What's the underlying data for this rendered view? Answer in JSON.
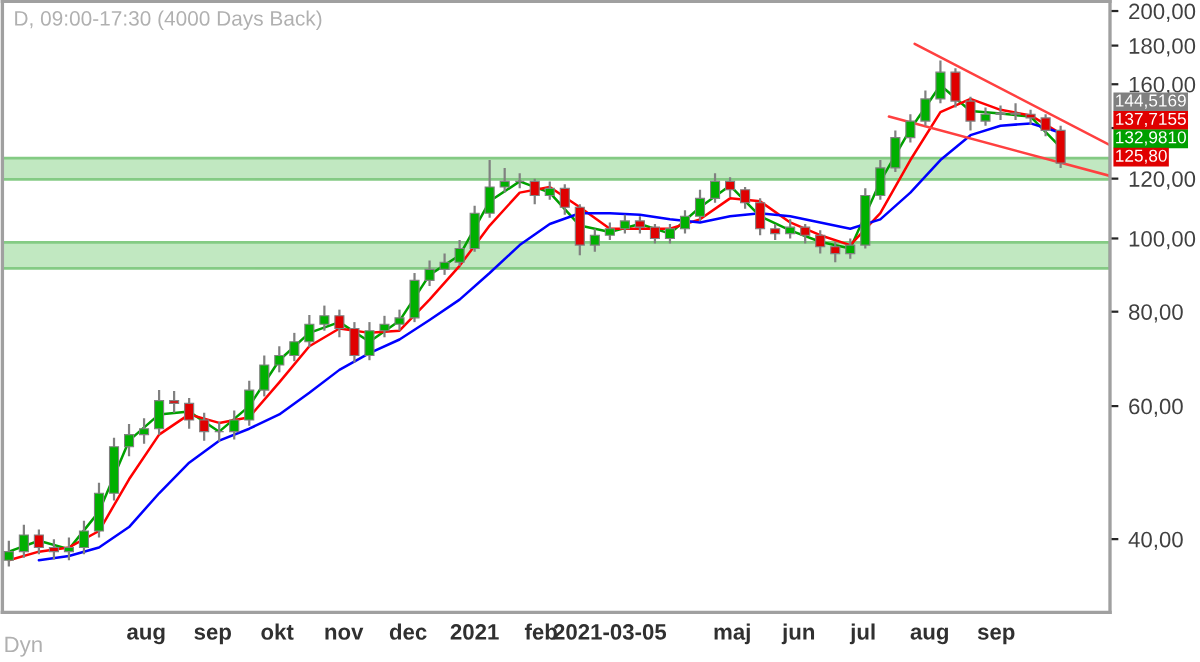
{
  "chart_data": {
    "type": "candlestick",
    "title": "D, 09:00-17:30 (4000 Days Back)",
    "x": [
      "2020-05-29",
      "2020-06-05",
      "2020-06-12",
      "2020-06-19",
      "2020-06-26",
      "2020-07-03",
      "2020-07-10",
      "2020-07-17",
      "2020-07-24",
      "2020-07-31",
      "2020-08-07",
      "2020-08-14",
      "2020-08-21",
      "2020-08-28",
      "2020-09-04",
      "2020-09-11",
      "2020-09-18",
      "2020-09-25",
      "2020-10-02",
      "2020-10-09",
      "2020-10-16",
      "2020-10-23",
      "2020-10-30",
      "2020-11-06",
      "2020-11-13",
      "2020-11-20",
      "2020-11-27",
      "2020-12-04",
      "2020-12-11",
      "2020-12-18",
      "2020-12-25",
      "2021-01-01",
      "2021-01-08",
      "2021-01-15",
      "2021-01-22",
      "2021-01-29",
      "2021-02-05",
      "2021-02-12",
      "2021-02-19",
      "2021-02-26",
      "2021-03-05",
      "2021-03-12",
      "2021-03-19",
      "2021-03-26",
      "2021-04-02",
      "2021-04-09",
      "2021-04-16",
      "2021-04-23",
      "2021-04-30",
      "2021-05-07",
      "2021-05-14",
      "2021-05-21",
      "2021-05-28",
      "2021-06-04",
      "2021-06-11",
      "2021-06-18",
      "2021-06-25",
      "2021-07-02",
      "2021-07-09",
      "2021-07-16",
      "2021-07-23",
      "2021-07-30",
      "2021-08-06",
      "2021-08-13",
      "2021-08-20",
      "2021-08-27",
      "2021-09-03",
      "2021-09-10",
      "2021-09-17",
      "2021-09-24",
      "2021-10-01"
    ],
    "ohlc": [
      [
        37.5,
        39.8,
        36.8,
        38.5
      ],
      [
        38.5,
        41.8,
        37.8,
        40.5
      ],
      [
        40.5,
        41.2,
        38.2,
        39
      ],
      [
        39,
        40,
        37.6,
        38.5
      ],
      [
        38.5,
        40.2,
        37.5,
        39
      ],
      [
        39,
        42.3,
        38.2,
        41
      ],
      [
        41,
        47.5,
        40.2,
        46
      ],
      [
        46,
        54.5,
        45,
        53
      ],
      [
        53,
        56.8,
        51.5,
        55
      ],
      [
        55,
        57.8,
        53.5,
        56
      ],
      [
        56,
        63,
        55,
        61
      ],
      [
        61,
        62.8,
        58.8,
        60.5
      ],
      [
        60.5,
        61.5,
        56,
        57.5
      ],
      [
        57.5,
        58.8,
        54,
        55.5
      ],
      [
        55.5,
        57.2,
        53.8,
        55.5
      ],
      [
        55.5,
        59.2,
        54.2,
        57.5
      ],
      [
        57.5,
        64.8,
        56.5,
        63
      ],
      [
        63,
        70,
        61.8,
        68
      ],
      [
        68,
        72,
        66.5,
        70
      ],
      [
        70,
        75,
        68.8,
        73
      ],
      [
        73,
        79.2,
        71.8,
        77
      ],
      [
        77,
        81.5,
        75.5,
        79
      ],
      [
        79,
        80.5,
        74,
        76
      ],
      [
        76,
        77.5,
        68.5,
        70
      ],
      [
        70,
        77.5,
        69,
        75.5
      ],
      [
        75.5,
        79,
        74,
        77
      ],
      [
        77,
        80.5,
        75.5,
        78.5
      ],
      [
        78.5,
        90,
        77.5,
        88
      ],
      [
        88,
        93.5,
        86.5,
        91
      ],
      [
        91,
        95.5,
        89.5,
        93
      ],
      [
        93,
        99.5,
        92,
        97
      ],
      [
        97,
        110.5,
        96,
        108
      ],
      [
        108,
        127,
        106.5,
        117
      ],
      [
        117,
        124,
        115,
        119
      ],
      [
        119,
        122,
        116.5,
        119
      ],
      [
        119,
        120,
        111,
        114
      ],
      [
        114,
        119,
        112.5,
        116.5
      ],
      [
        116.5,
        118,
        107.5,
        110
      ],
      [
        110,
        111,
        95,
        98
      ],
      [
        98,
        103,
        96,
        101
      ],
      [
        101,
        105,
        99.5,
        103
      ],
      [
        103,
        107.5,
        101.5,
        105.5
      ],
      [
        105.5,
        107,
        101.5,
        103.5
      ],
      [
        103.5,
        104.5,
        98.5,
        100
      ],
      [
        100,
        104.5,
        98.5,
        103
      ],
      [
        103,
        109,
        101.5,
        107
      ],
      [
        107,
        116,
        105.5,
        113
      ],
      [
        113,
        122,
        111.5,
        119
      ],
      [
        119,
        120.5,
        113.5,
        116
      ],
      [
        116,
        117,
        109.5,
        111.5
      ],
      [
        111.5,
        113,
        101,
        103
      ],
      [
        103,
        104.5,
        99.5,
        101.5
      ],
      [
        101.5,
        106,
        100,
        103.5
      ],
      [
        103.5,
        104.5,
        98.5,
        101
      ],
      [
        101,
        102.5,
        95.5,
        97.5
      ],
      [
        97.5,
        99,
        93,
        95.5
      ],
      [
        95.5,
        100,
        94,
        98
      ],
      [
        98,
        116.5,
        97,
        114
      ],
      [
        114,
        127,
        112.5,
        124
      ],
      [
        124,
        139,
        122.5,
        136
      ],
      [
        136,
        146,
        134,
        143
      ],
      [
        143,
        157,
        141,
        153
      ],
      [
        153,
        172,
        151,
        166
      ],
      [
        166,
        168,
        149,
        152
      ],
      [
        152,
        154,
        139,
        143
      ],
      [
        143,
        149,
        141,
        146
      ],
      [
        146,
        150,
        143.5,
        146.5
      ],
      [
        146.5,
        151,
        143.5,
        146
      ],
      [
        146,
        148,
        141.5,
        144.4
      ],
      [
        144.4,
        146,
        136.5,
        139
      ],
      [
        139,
        141,
        124,
        125.8
      ]
    ],
    "series": [
      {
        "type": "line",
        "color": "#00a000",
        "x": [
          "2020-05-29",
          "2020-06-12",
          "2020-06-26",
          "2020-07-10",
          "2020-07-24",
          "2020-08-07",
          "2020-08-21",
          "2020-09-04",
          "2020-09-18",
          "2020-10-02",
          "2020-10-16",
          "2020-10-30",
          "2020-11-13",
          "2020-11-27",
          "2020-12-11",
          "2020-12-25",
          "2021-01-08",
          "2021-01-22",
          "2021-02-05",
          "2021-02-19",
          "2021-03-05",
          "2021-03-19",
          "2021-04-02",
          "2021-04-16",
          "2021-04-30",
          "2021-05-14",
          "2021-05-28",
          "2021-06-11",
          "2021-06-25",
          "2021-07-09",
          "2021-07-23",
          "2021-08-06",
          "2021-08-20",
          "2021-09-03",
          "2021-09-17",
          "2021-10-01"
        ],
        "values": [
          38.5,
          39.8,
          38.8,
          43.5,
          54,
          58.5,
          59,
          55.5,
          60,
          69,
          75,
          77.5,
          73,
          77.8,
          89.5,
          95,
          112,
          119,
          115,
          104,
          102,
          104.5,
          101.5,
          110,
          117.5,
          107,
          102.5,
          99,
          97,
          119,
          139.5,
          159.5,
          147.5,
          146.3,
          145,
          132
        ]
      },
      {
        "type": "line",
        "color": "#ff0000",
        "x": [
          "2020-05-29",
          "2020-06-12",
          "2020-06-26",
          "2020-07-10",
          "2020-07-24",
          "2020-08-07",
          "2020-08-21",
          "2020-09-04",
          "2020-09-18",
          "2020-10-02",
          "2020-10-16",
          "2020-10-30",
          "2020-11-13",
          "2020-11-27",
          "2020-12-11",
          "2020-12-25",
          "2021-01-08",
          "2021-01-22",
          "2021-02-05",
          "2021-02-19",
          "2021-03-05",
          "2021-03-19",
          "2021-04-02",
          "2021-04-16",
          "2021-04-30",
          "2021-05-14",
          "2021-05-28",
          "2021-06-11",
          "2021-06-25",
          "2021-07-09",
          "2021-07-23",
          "2021-08-06",
          "2021-08-20",
          "2021-09-03",
          "2021-09-17",
          "2021-10-01"
        ],
        "values": [
          37.5,
          38.5,
          39,
          41,
          48,
          55,
          58.5,
          57,
          58,
          64.5,
          72,
          76,
          75,
          75.5,
          83,
          92,
          104,
          115,
          117,
          110,
          103,
          103,
          103,
          106,
          113,
          112,
          105,
          101,
          98,
          108,
          127,
          147,
          153,
          148,
          145.5,
          137.7
        ]
      },
      {
        "type": "line",
        "color": "#0000ff",
        "x": [
          "2020-06-12",
          "2020-06-26",
          "2020-07-10",
          "2020-07-24",
          "2020-08-07",
          "2020-08-21",
          "2020-09-04",
          "2020-09-18",
          "2020-10-02",
          "2020-10-16",
          "2020-10-30",
          "2020-11-13",
          "2020-11-27",
          "2020-12-11",
          "2020-12-25",
          "2021-01-08",
          "2021-01-22",
          "2021-02-05",
          "2021-02-19",
          "2021-03-05",
          "2021-03-19",
          "2021-04-02",
          "2021-04-16",
          "2021-04-30",
          "2021-05-14",
          "2021-05-28",
          "2021-06-11",
          "2021-06-25",
          "2021-07-09",
          "2021-07-23",
          "2021-08-06",
          "2021-08-20",
          "2021-09-03",
          "2021-09-17",
          "2021-10-01"
        ],
        "values": [
          37.5,
          38,
          39,
          41.5,
          46,
          50.5,
          54,
          56,
          58.5,
          62.5,
          67,
          70.5,
          73.5,
          78,
          83,
          90,
          98,
          104.5,
          108,
          108,
          107.5,
          106,
          105,
          107,
          108,
          107,
          105,
          103,
          106,
          115,
          127,
          137,
          141,
          142,
          138
        ]
      },
      {
        "type": "line",
        "color": "#ff4040",
        "x": [
          "2021-07-25",
          "2021-10-24"
        ],
        "values": [
          181,
          132.9
        ]
      },
      {
        "type": "line",
        "color": "#ff4040",
        "x": [
          "2021-07-13",
          "2021-10-24"
        ],
        "values": [
          145,
          121
        ]
      }
    ],
    "bands": [
      {
        "axis": "y",
        "from": 119.7,
        "to": 127.7,
        "color": "#8fd68f"
      },
      {
        "axis": "y",
        "from": 91.3,
        "to": 98.8,
        "color": "#8fd68f"
      }
    ],
    "annotations": [
      "144,5169",
      "137,7155",
      "132,9810",
      "125,80",
      "Dyn"
    ],
    "log": true,
    "xlim": [
      "2020-05-26",
      "2021-10-24"
    ],
    "xticks": [
      {
        "value": "2020-08-01",
        "label": "aug"
      },
      {
        "value": "2020-09-01",
        "label": "sep"
      },
      {
        "value": "2020-10-01",
        "label": "okt"
      },
      {
        "value": "2020-11-01",
        "label": "nov"
      },
      {
        "value": "2020-12-01",
        "label": "dec"
      },
      {
        "value": "2021-01-01",
        "label": "2021"
      },
      {
        "value": "2021-02-01",
        "label": "feb"
      },
      {
        "value": "2021-03-05",
        "label": "2021-03-05"
      },
      {
        "value": "2021-05-01",
        "label": "maj"
      },
      {
        "value": "2021-06-01",
        "label": "jun"
      },
      {
        "value": "2021-07-01",
        "label": "jul"
      },
      {
        "value": "2021-08-01",
        "label": "aug"
      },
      {
        "value": "2021-09-01",
        "label": "sep"
      }
    ],
    "ylim": [
      32,
      206
    ],
    "yticks": [
      {
        "value": 40,
        "label": "40,00"
      },
      {
        "value": 60,
        "label": "60,00"
      },
      {
        "value": 80,
        "label": "80,00"
      },
      {
        "value": 100,
        "label": "100,00"
      },
      {
        "value": 120,
        "label": "120,00"
      },
      {
        "value": 140,
        "label": null
      },
      {
        "value": 160,
        "label": "160,00"
      },
      {
        "value": 180,
        "label": "180,00"
      },
      {
        "value": 200,
        "label": "200,00"
      }
    ],
    "grid": false,
    "legend": false
  }
}
